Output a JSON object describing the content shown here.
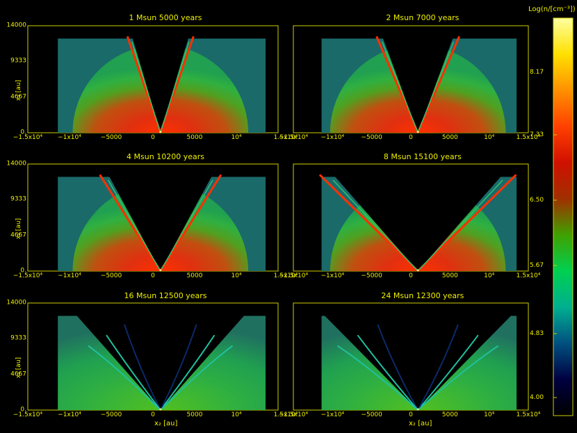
{
  "panels": [
    {
      "title": "1 Msun 5000 years",
      "kind": "cone",
      "open": 0.12,
      "jet": 0.04
    },
    {
      "title": "2 Msun 7000 years",
      "kind": "cone",
      "open": 0.16,
      "jet": 0.06
    },
    {
      "title": "4 Msun 10200 years",
      "kind": "cone",
      "open": 0.22,
      "jet": 0.1
    },
    {
      "title": "8 Msun 15100 years",
      "kind": "cone",
      "open": 0.38,
      "jet": 0.16
    },
    {
      "title": "16 Msun 12500 years",
      "kind": "wide",
      "open": 0.8,
      "jet": 0.3
    },
    {
      "title": "24 Msun 12300 years",
      "kind": "wide",
      "open": 0.95,
      "jet": 0.45
    }
  ],
  "axes": {
    "y_ticks": [
      "14000",
      "9333",
      "4667",
      "0."
    ],
    "x_ticks_left": [
      "−1.5x10⁴",
      "−1x10⁴",
      "−5000",
      "0",
      "5000",
      "10⁴"
    ],
    "x_ticks_right": [
      "−1.5x10⁴",
      "−1x10⁴",
      "−5000",
      "0",
      "5000",
      "10⁴",
      "1.5x10⁴"
    ],
    "seam_label": "1.5x10⁴",
    "y_label": "x₁ [au]",
    "x_label": "x₂ [au]"
  },
  "colorbar": {
    "title": "Log(n/[cm⁻³])",
    "ticks": [
      "8.17",
      "7.33",
      "6.50",
      "5.67",
      "4.83",
      "4.00"
    ],
    "colors": [
      "#ffffa0",
      "#ffe000",
      "#ff9000",
      "#ff4000",
      "#d01000",
      "#a03000",
      "#40a000",
      "#00d050",
      "#00b090",
      "#005080",
      "#000040",
      "#000000"
    ]
  }
}
